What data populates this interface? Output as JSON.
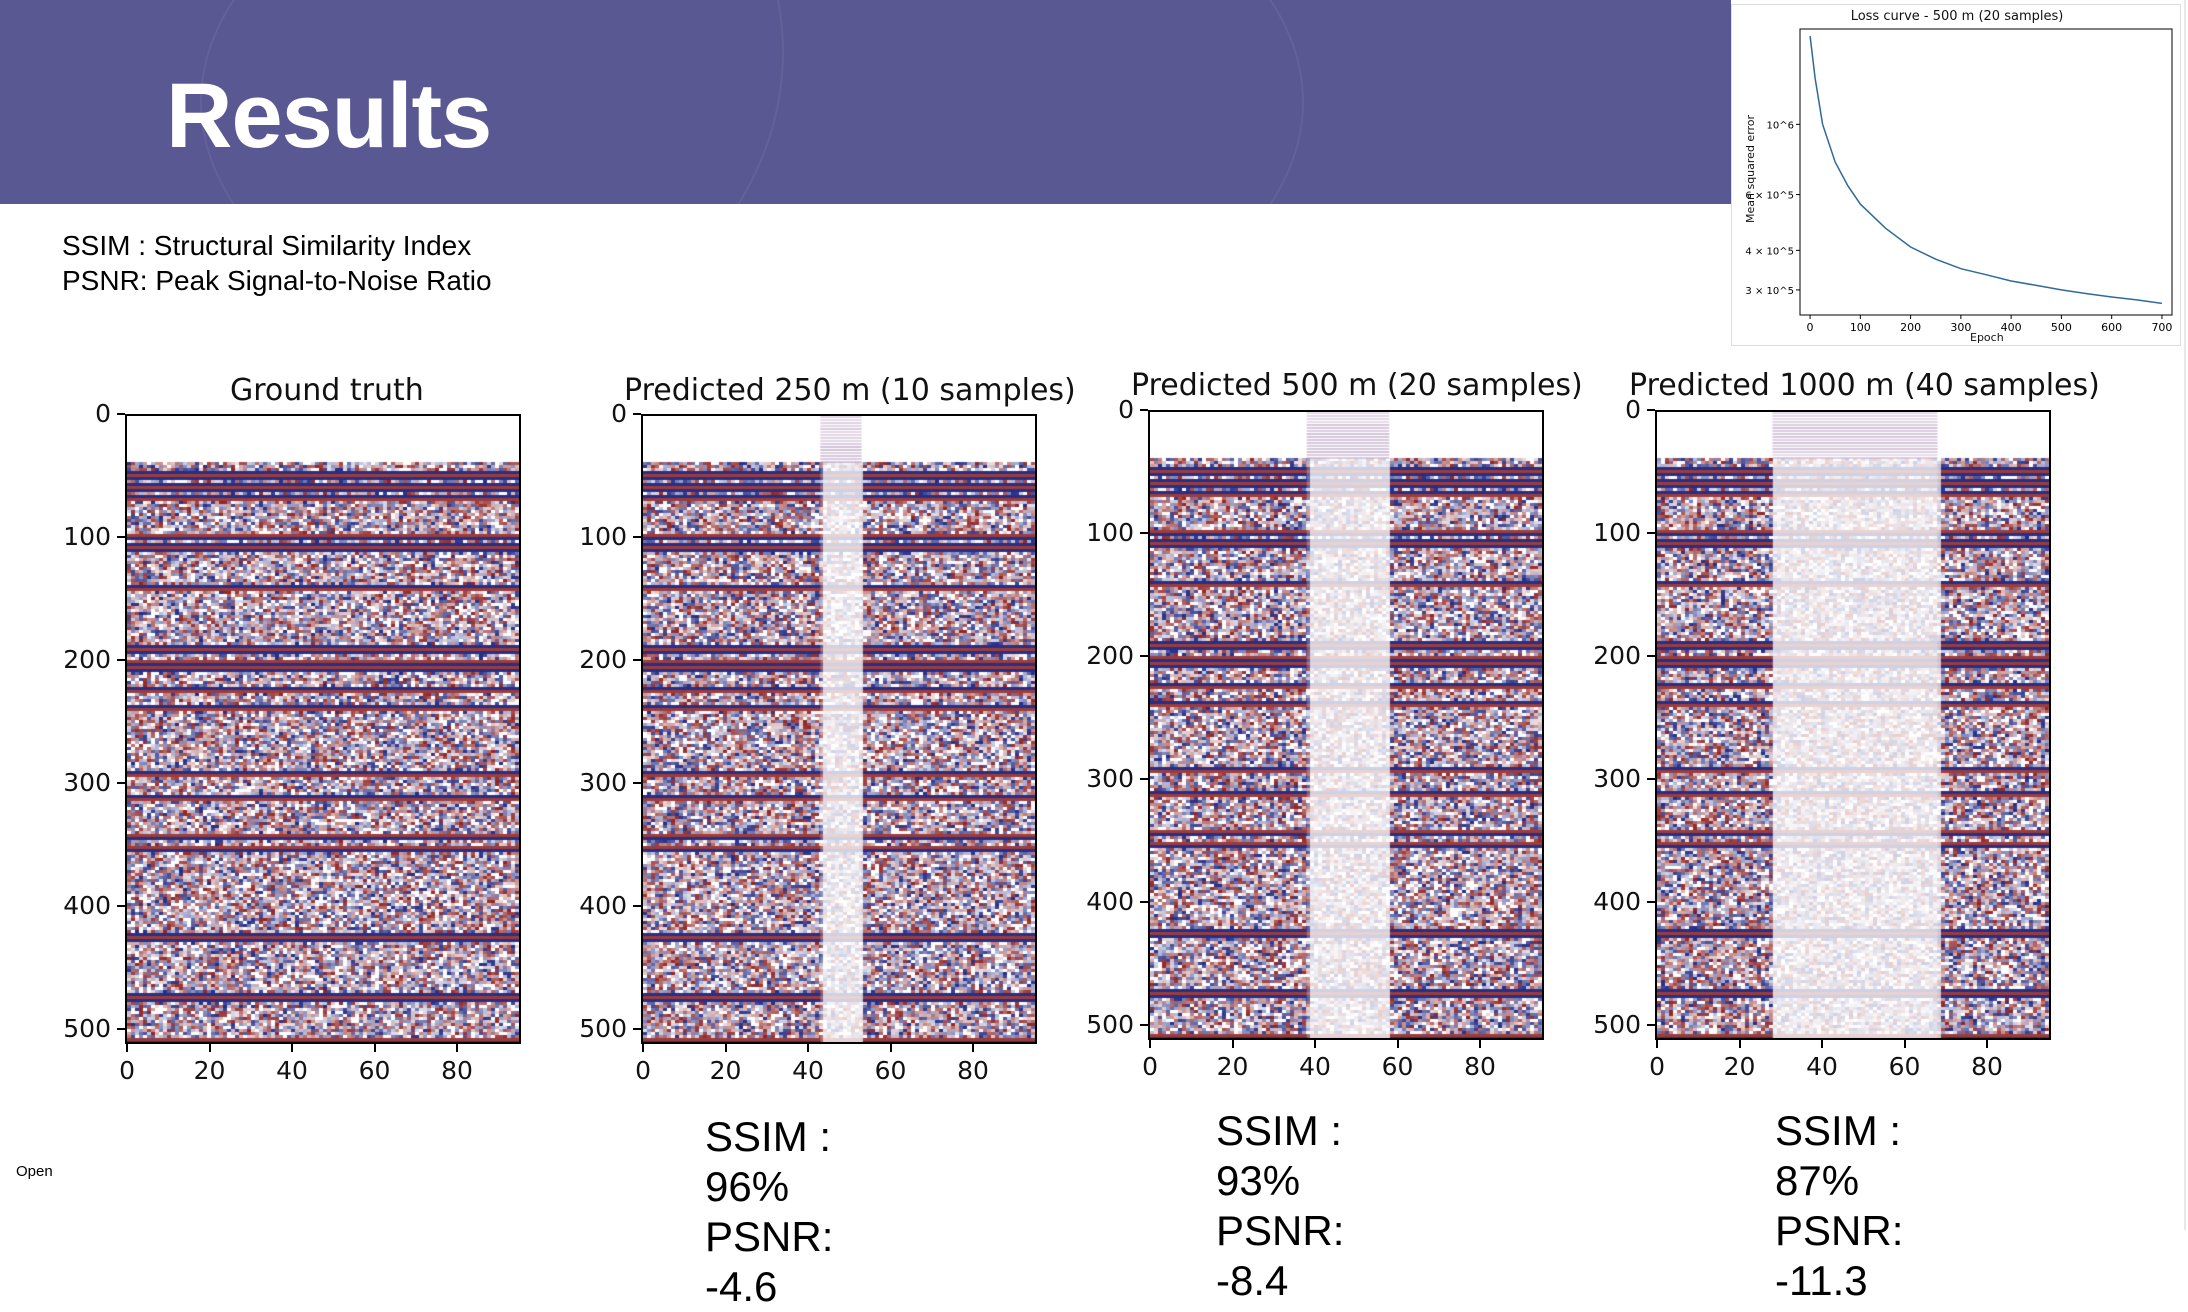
{
  "slide": {
    "title": "Results",
    "definitions": [
      "SSIM : Structural Similarity Index",
      "PSNR: Peak Signal-to-Noise Ratio"
    ],
    "footer_label": "Open"
  },
  "panels": [
    {
      "title": "Ground truth",
      "ssim": "",
      "psnr": "",
      "gap": null
    },
    {
      "title": "Predicted 250 m (10 samples)",
      "ssim": "SSIM : 96%",
      "psnr": "PSNR: -4.6",
      "gap": [
        43,
        53
      ]
    },
    {
      "title": "Predicted 500 m (20 samples)",
      "ssim": "SSIM : 93%",
      "psnr": "PSNR: -8.4",
      "gap": [
        38,
        58
      ]
    },
    {
      "title": "Predicted 1000 m (40 samples)",
      "ssim": "SSIM : 87%",
      "psnr": "PSNR: -11.3",
      "gap": [
        28,
        68
      ]
    }
  ],
  "axis": {
    "yticks": [
      "0",
      "100",
      "200",
      "300",
      "400",
      "500"
    ],
    "xticks": [
      "0",
      "20",
      "40",
      "60",
      "80"
    ]
  },
  "colors": {
    "banner": "#5a5892",
    "seismic_positive": "#8b1a1a",
    "seismic_negative": "#1a237e"
  },
  "chart_data": {
    "type": "line",
    "title": "Loss curve - 500 m (20 samples)",
    "xlabel": "Epoch",
    "ylabel": "Mean squared error",
    "xticks": [
      "0",
      "100",
      "200",
      "300",
      "400",
      "500",
      "600",
      "700"
    ],
    "yticks": [
      "10^6",
      "6 × 10^5",
      "4 × 10^5",
      "3 × 10^5"
    ],
    "yscale": "log",
    "x": [
      0,
      10,
      25,
      50,
      75,
      100,
      150,
      200,
      250,
      300,
      350,
      400,
      450,
      500,
      550,
      600,
      650,
      700
    ],
    "y": [
      1900000,
      1400000,
      1000000,
      760000,
      640000,
      560000,
      470000,
      410000,
      375000,
      350000,
      335000,
      320000,
      310000,
      300000,
      292000,
      285000,
      279000,
      272000
    ],
    "xlim": [
      -20,
      720
    ],
    "ylim": [
      250000,
      2000000
    ],
    "grid": false
  }
}
